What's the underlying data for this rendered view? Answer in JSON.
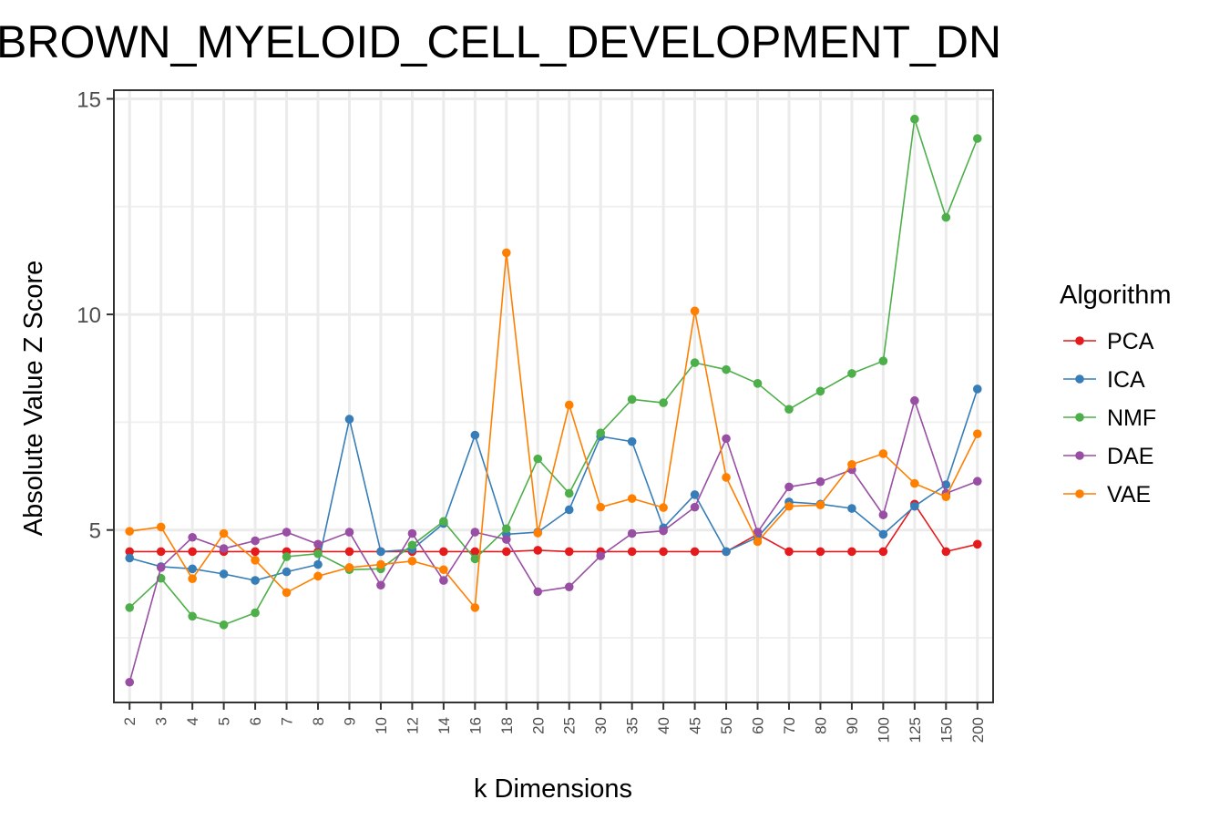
{
  "chart_data": {
    "type": "line",
    "title": "BROWN_MYELOID_CELL_DEVELOPMENT_DN",
    "xlabel": "k Dimensions",
    "ylabel": "Absolute Value Z Score",
    "categories": [
      "2",
      "3",
      "4",
      "5",
      "6",
      "7",
      "8",
      "9",
      "10",
      "12",
      "14",
      "16",
      "18",
      "20",
      "25",
      "30",
      "35",
      "40",
      "45",
      "50",
      "60",
      "70",
      "80",
      "90",
      "100",
      "125",
      "150",
      "200"
    ],
    "ylim": [
      1.0,
      15.2
    ],
    "yticks": [
      5,
      10,
      15
    ],
    "grid": true,
    "legend": {
      "title": "Algorithm",
      "position": "right"
    },
    "series": [
      {
        "name": "PCA",
        "color": "#e41a1c",
        "values": [
          4.5,
          4.5,
          4.5,
          4.5,
          4.5,
          4.5,
          4.5,
          4.5,
          4.5,
          4.5,
          4.5,
          4.5,
          4.5,
          4.53,
          4.5,
          4.5,
          4.5,
          4.5,
          4.5,
          4.5,
          4.9,
          4.5,
          4.5,
          4.5,
          4.5,
          5.6,
          4.5,
          4.67
        ]
      },
      {
        "name": "ICA",
        "color": "#377eb8",
        "values": [
          4.35,
          4.15,
          4.1,
          3.98,
          3.83,
          4.03,
          4.2,
          7.57,
          4.5,
          4.55,
          5.15,
          7.2,
          4.9,
          4.95,
          5.47,
          7.17,
          7.05,
          5.05,
          5.82,
          4.5,
          4.83,
          5.65,
          5.6,
          5.5,
          4.9,
          5.55,
          6.05,
          8.27
        ]
      },
      {
        "name": "NMF",
        "color": "#4daf4a",
        "values": [
          3.2,
          3.88,
          3.0,
          2.8,
          3.08,
          4.38,
          4.45,
          4.08,
          4.1,
          4.65,
          5.2,
          4.33,
          5.03,
          6.65,
          5.85,
          7.25,
          8.03,
          7.95,
          8.88,
          8.72,
          8.4,
          7.8,
          8.22,
          8.63,
          8.92,
          14.53,
          12.25,
          14.08
        ]
      },
      {
        "name": "DAE",
        "color": "#984ea3",
        "values": [
          1.47,
          4.13,
          4.83,
          4.57,
          4.75,
          4.95,
          4.67,
          4.95,
          3.72,
          4.92,
          3.83,
          4.95,
          4.78,
          3.57,
          3.68,
          4.4,
          4.92,
          4.98,
          5.53,
          7.12,
          4.95,
          6.0,
          6.12,
          6.4,
          5.35,
          8.0,
          5.85,
          6.13
        ]
      },
      {
        "name": "VAE",
        "color": "#ff7f00",
        "values": [
          4.97,
          5.07,
          3.87,
          4.92,
          4.3,
          3.55,
          3.93,
          4.13,
          4.2,
          4.28,
          4.08,
          3.2,
          11.43,
          4.93,
          7.9,
          5.53,
          5.73,
          5.52,
          10.08,
          6.22,
          4.73,
          5.55,
          5.58,
          6.52,
          6.77,
          6.08,
          5.77,
          7.23
        ]
      }
    ]
  }
}
